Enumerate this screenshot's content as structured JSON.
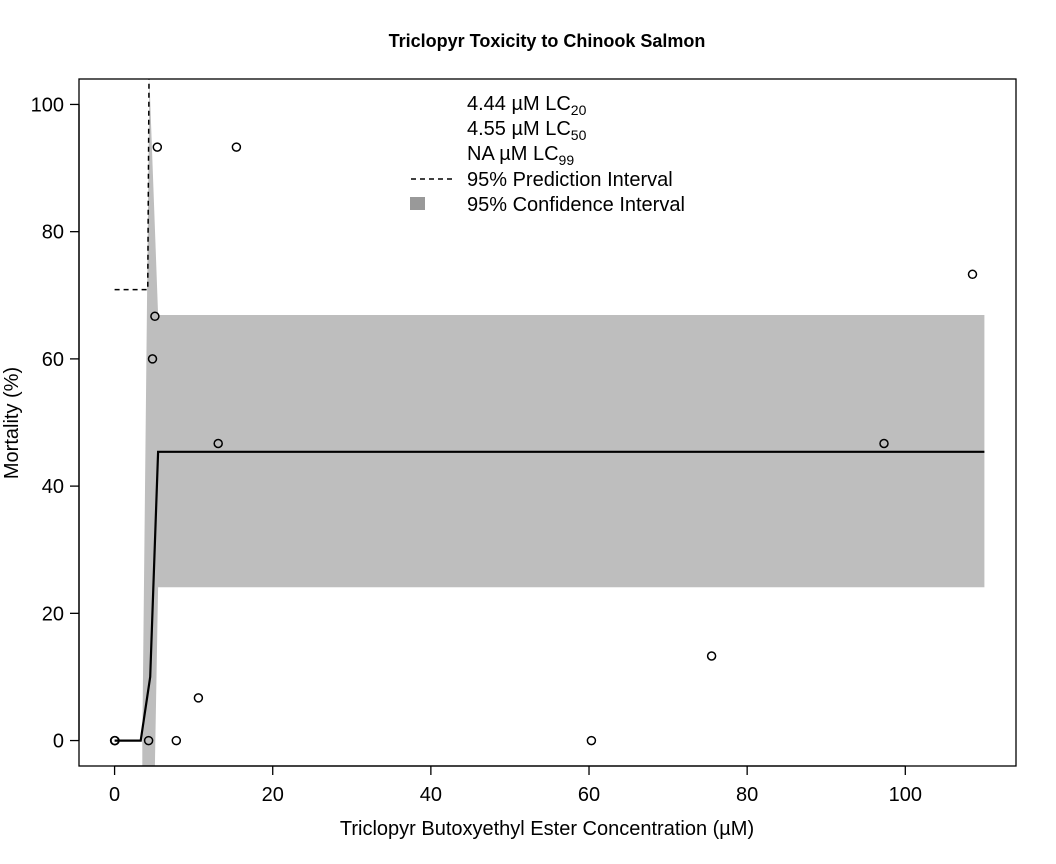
{
  "chart_data": {
    "type": "scatter",
    "title": "Triclopyr Toxicity to Chinook Salmon",
    "xlabel": "Triclopyr Butoxyethyl Ester Concentration (µM)",
    "ylabel": "Mortality (%)",
    "xlim": [
      -4.5,
      114
    ],
    "ylim": [
      -4,
      104
    ],
    "xticks": [
      0,
      20,
      40,
      60,
      80,
      100
    ],
    "yticks": [
      0,
      20,
      40,
      60,
      80,
      100
    ],
    "grid": false,
    "legend_position": "top-center",
    "points": [
      {
        "x": 0,
        "y": 0
      },
      {
        "x": 0.05,
        "y": 0
      },
      {
        "x": 4.3,
        "y": 0
      },
      {
        "x": 4.8,
        "y": 60
      },
      {
        "x": 5.1,
        "y": 66.7
      },
      {
        "x": 5.4,
        "y": 93.3
      },
      {
        "x": 7.8,
        "y": 0
      },
      {
        "x": 10.6,
        "y": 6.7
      },
      {
        "x": 13.1,
        "y": 46.7
      },
      {
        "x": 15.4,
        "y": 93.3
      },
      {
        "x": 60.3,
        "y": 0
      },
      {
        "x": 75.5,
        "y": 13.3
      },
      {
        "x": 97.3,
        "y": 46.7
      },
      {
        "x": 108.5,
        "y": 73.3
      }
    ],
    "fit_line": {
      "x": [
        0,
        3.3,
        4.5,
        5.5,
        110
      ],
      "y": [
        0,
        0,
        10,
        45.4,
        45.4
      ]
    },
    "confidence_band": {
      "x": [
        3.5,
        3.5,
        4.4,
        5.5,
        110,
        110,
        5.5,
        5.1
      ],
      "y": [
        -4,
        0,
        104,
        66.9,
        66.9,
        24.1,
        24.1,
        -4
      ]
    },
    "prediction_interval": {
      "x": [
        0,
        4.2,
        4.2,
        4.35
      ],
      "y": [
        70.9,
        70.9,
        72.5,
        104
      ]
    },
    "legend": {
      "lc20": {
        "value": "4.44 µM LC",
        "sub": "20"
      },
      "lc50": {
        "value": "4.55 µM LC",
        "sub": "50"
      },
      "lc99": {
        "value": "NA µM LC",
        "sub": "99"
      },
      "prediction": "95% Prediction Interval",
      "confidence": "95% Confidence Interval"
    },
    "colors": {
      "band": "#bebebe",
      "band_legend": "#999999",
      "line": "#000000"
    }
  }
}
